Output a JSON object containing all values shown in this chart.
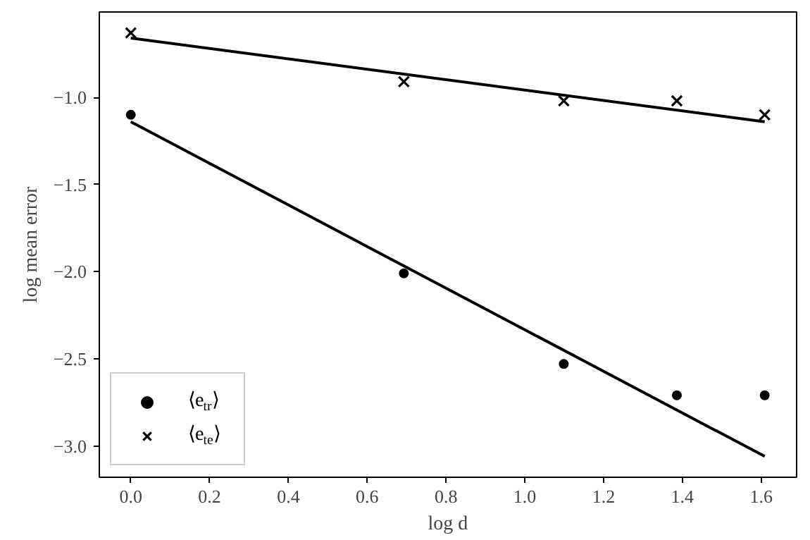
{
  "chart_data": {
    "type": "scatter",
    "xlabel": "log d",
    "ylabel": "log mean error",
    "xlim": [
      -0.08,
      1.69
    ],
    "ylim": [
      -3.18,
      -0.51
    ],
    "xticks": [
      {
        "value": 0,
        "label": "0.0"
      },
      0.2,
      0.4,
      0.6,
      0.8,
      {
        "value": 1,
        "label": "1.0"
      },
      1.2,
      1.4,
      1.6
    ],
    "yticks": [
      {
        "value": -3,
        "label": "−3.0"
      },
      {
        "value": -2.5,
        "label": "−2.5"
      },
      {
        "value": -2,
        "label": "−2.0"
      },
      {
        "value": -1.5,
        "label": "−1.5"
      },
      {
        "value": -1,
        "label": "−1.0"
      }
    ],
    "grid": false,
    "legend": "bottom left",
    "series": [
      {
        "name": "⟨e$_{tr}$⟩",
        "color": "#000000",
        "marker": "circle",
        "x": [
          0,
          0.693,
          1.099,
          1.386,
          1.609
        ],
        "values": [
          -1.1,
          -2.01,
          -2.53,
          -2.71,
          -2.71
        ]
      },
      {
        "name": "⟨e$_{te}$⟩",
        "color": "#000000",
        "marker": "cross",
        "x": [
          0,
          0.693,
          1.099,
          1.386,
          1.609
        ],
        "values": [
          -0.63,
          -0.91,
          -1.02,
          -1.02,
          -1.1
        ]
      },
      {
        "type": "line",
        "color": "#000000",
        "x": [
          0,
          1.609
        ],
        "values": [
          -1.14,
          -3.06
        ]
      },
      {
        "type": "line",
        "color": "#000000",
        "x": [
          0,
          1.609
        ],
        "values": [
          -0.66,
          -1.14
        ]
      }
    ]
  }
}
